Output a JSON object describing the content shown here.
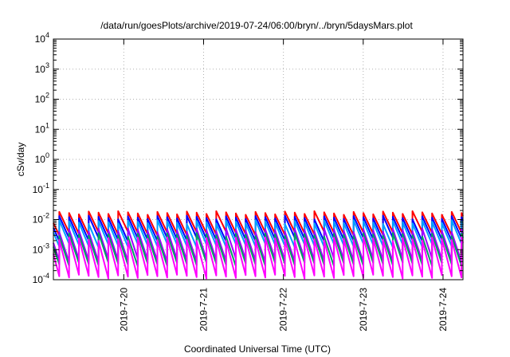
{
  "chart_data": {
    "type": "line",
    "title": "/data/run/goesPlots/archive/2019-07-24/06:00/bryn/../bryn/5daysMars.plot",
    "xlabel": "Coordinated Universal Time (UTC)",
    "ylabel": "cSv/day",
    "y_scale": "log",
    "ylim": [
      0.0001,
      10000
    ],
    "y_ticks": [
      {
        "base": "10",
        "exp": "-4"
      },
      {
        "base": "10",
        "exp": "-3"
      },
      {
        "base": "10",
        "exp": "-2"
      },
      {
        "base": "10",
        "exp": "-1"
      },
      {
        "base": "10",
        "exp": "0"
      },
      {
        "base": "10",
        "exp": "1"
      },
      {
        "base": "10",
        "exp": "2"
      },
      {
        "base": "10",
        "exp": "3"
      },
      {
        "base": "10",
        "exp": "4"
      }
    ],
    "xlim": [
      "2019-07-19 02:50",
      "2019-07-24 06:00"
    ],
    "x_ticks": [
      "2019-7-20",
      "2019-7-21",
      "2019-7-22",
      "2019-7-23",
      "2019-7-24"
    ],
    "grid": true,
    "legend": "none",
    "sawtooth_period_hours": 2.95,
    "series": [
      {
        "color": "#ff0000",
        "peak": 0.017,
        "trough": 0.0035
      },
      {
        "color": "#0000ff",
        "peak": 0.012,
        "trough": 0.0022
      },
      {
        "color": "#00a0ff",
        "peak": 0.0085,
        "trough": 0.0014
      },
      {
        "color": "#a000ff",
        "peak": 0.0045,
        "trough": 0.00045
      },
      {
        "color": "#00a060",
        "peak": 0.0032,
        "trough": 0.00033
      },
      {
        "color": "#ff00ff",
        "peak": 0.0023,
        "trough": 0.00013
      }
    ]
  }
}
